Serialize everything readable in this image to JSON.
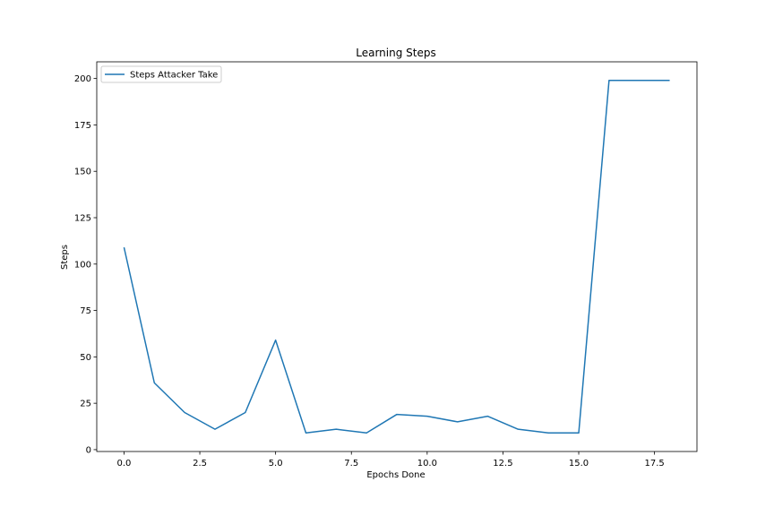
{
  "chart_data": {
    "type": "line",
    "title": "Learning Steps",
    "xlabel": "Epochs Done",
    "ylabel": "Steps",
    "xlim": [
      -0.9,
      18.9
    ],
    "ylim": [
      -1,
      209
    ],
    "x_ticks": [
      0.0,
      2.5,
      5.0,
      7.5,
      10.0,
      12.5,
      15.0,
      17.5
    ],
    "x_tick_labels": [
      "0.0",
      "2.5",
      "5.0",
      "7.5",
      "10.0",
      "12.5",
      "15.0",
      "17.5"
    ],
    "y_ticks": [
      0,
      25,
      50,
      75,
      100,
      125,
      150,
      175,
      200
    ],
    "y_tick_labels": [
      "0",
      "25",
      "50",
      "75",
      "100",
      "125",
      "150",
      "175",
      "200"
    ],
    "grid": false,
    "legend_position": "top-left",
    "series": [
      {
        "name": "Steps Attacker Take",
        "color": "#1f77b4",
        "x": [
          0,
          1,
          2,
          3,
          4,
          5,
          6,
          7,
          8,
          9,
          10,
          11,
          12,
          13,
          14,
          15,
          16,
          17,
          18
        ],
        "y": [
          109,
          36,
          20,
          11,
          20,
          59,
          9,
          11,
          9,
          19,
          18,
          15,
          18,
          11,
          9,
          9,
          199,
          199,
          199
        ]
      }
    ]
  }
}
